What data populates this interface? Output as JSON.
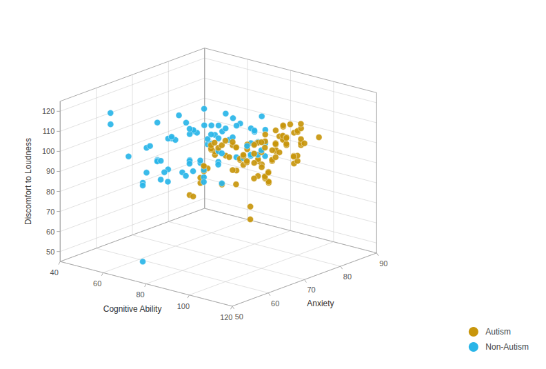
{
  "chart_data": {
    "type": "scatter3d",
    "xlabel": "Cognitive Ability",
    "ylabel": "Anxiety",
    "zlabel": "Discomfort to Loudness",
    "xlim": [
      40,
      120
    ],
    "ylim": [
      50,
      90
    ],
    "zlim": [
      45,
      125
    ],
    "xticks": [
      40,
      60,
      80,
      100,
      120
    ],
    "yticks": [
      50,
      60,
      70,
      80,
      90
    ],
    "zticks": [
      50,
      60,
      70,
      80,
      90,
      100,
      110,
      120
    ],
    "grid": true,
    "legend": "lower right",
    "series": [
      {
        "name": "Autism",
        "color": "#C8960C",
        "values": [
          [
            85,
            72,
            100
          ],
          [
            90,
            68,
            105
          ],
          [
            95,
            65,
            110
          ],
          [
            100,
            70,
            108
          ],
          [
            105,
            75,
            115
          ],
          [
            110,
            68,
            118
          ],
          [
            115,
            72,
            120
          ],
          [
            120,
            65,
            119
          ],
          [
            80,
            80,
            95
          ],
          [
            85,
            78,
            90
          ],
          [
            90,
            75,
            85
          ],
          [
            95,
            82,
            88
          ],
          [
            100,
            80,
            92
          ],
          [
            105,
            77,
            98
          ],
          [
            110,
            73,
            102
          ],
          [
            115,
            70,
            105
          ],
          [
            75,
            85,
            80
          ],
          [
            80,
            82,
            82
          ],
          [
            85,
            80,
            79
          ],
          [
            90,
            78,
            80
          ],
          [
            95,
            75,
            83
          ],
          [
            100,
            72,
            87
          ],
          [
            105,
            68,
            93
          ],
          [
            110,
            65,
            97
          ],
          [
            70,
            75,
            90
          ],
          [
            75,
            72,
            95
          ],
          [
            80,
            70,
            98
          ],
          [
            85,
            67,
            103
          ],
          [
            90,
            65,
            107
          ],
          [
            95,
            63,
            112
          ],
          [
            100,
            68,
            108
          ],
          [
            105,
            72,
            111
          ],
          [
            110,
            75,
            106
          ],
          [
            115,
            77,
            110
          ],
          [
            120,
            70,
            113
          ],
          [
            80,
            68,
            100
          ],
          [
            85,
            65,
            104
          ],
          [
            90,
            62,
            109
          ],
          [
            95,
            60,
            113
          ],
          [
            100,
            63,
            110
          ],
          [
            105,
            65,
            107
          ],
          [
            110,
            68,
            111
          ],
          [
            115,
            65,
            115
          ],
          [
            120,
            62,
            118
          ],
          [
            75,
            70,
            88
          ],
          [
            80,
            73,
            93
          ],
          [
            85,
            75,
            97
          ],
          [
            90,
            77,
            101
          ],
          [
            95,
            72,
            105
          ],
          [
            100,
            70,
            103
          ],
          [
            105,
            68,
            108
          ],
          [
            110,
            70,
            112
          ],
          [
            115,
            68,
            116
          ],
          [
            100,
            65,
            100
          ],
          [
            105,
            63,
            104
          ],
          [
            110,
            60,
            108
          ],
          [
            85,
            73,
            93
          ],
          [
            90,
            70,
            97
          ],
          [
            95,
            68,
            101
          ],
          [
            100,
            65,
            105
          ],
          [
            80,
            75,
            85
          ],
          [
            85,
            78,
            89
          ],
          [
            90,
            80,
            94
          ],
          [
            95,
            77,
            98
          ],
          [
            100,
            73,
            102
          ],
          [
            105,
            70,
            100
          ],
          [
            110,
            67,
            104
          ],
          [
            115,
            65,
            108
          ],
          [
            75,
            68,
            82
          ],
          [
            80,
            65,
            88
          ],
          [
            85,
            63,
            94
          ],
          [
            90,
            60,
            100
          ],
          [
            95,
            65,
            96
          ],
          [
            100,
            68,
            99
          ],
          [
            105,
            72,
            103
          ],
          [
            110,
            75,
            107
          ],
          [
            70,
            72,
            86
          ],
          [
            75,
            75,
            91
          ],
          [
            80,
            78,
            96
          ],
          [
            85,
            80,
            101
          ],
          [
            90,
            82,
            105
          ],
          [
            95,
            79,
            109
          ],
          [
            100,
            76,
            106
          ],
          [
            105,
            73,
            110
          ],
          [
            110,
            70,
            114
          ],
          [
            115,
            68,
            112
          ],
          [
            120,
            65,
            116
          ],
          [
            105,
            60,
            95
          ],
          [
            110,
            62,
            98
          ],
          [
            115,
            63,
            102
          ],
          [
            120,
            60,
            105
          ],
          [
            90,
            85,
            100
          ],
          [
            95,
            83,
            103
          ],
          [
            100,
            80,
            107
          ],
          [
            105,
            78,
            111
          ],
          [
            110,
            75,
            109
          ],
          [
            75,
            65,
            78
          ],
          [
            80,
            63,
            80
          ],
          [
            85,
            68,
            84
          ],
          [
            120,
            55,
            85
          ],
          [
            115,
            58,
            88
          ]
        ]
      },
      {
        "name": "Non-Autism",
        "color": "#29B5E8",
        "values": [
          [
            55,
            55,
            120
          ],
          [
            50,
            58,
            111
          ],
          [
            55,
            60,
            95
          ],
          [
            60,
            65,
            110
          ],
          [
            65,
            68,
            113
          ],
          [
            65,
            70,
            108
          ],
          [
            70,
            72,
            115
          ],
          [
            70,
            68,
            105
          ],
          [
            75,
            75,
            112
          ],
          [
            75,
            70,
            100
          ],
          [
            80,
            72,
            108
          ],
          [
            80,
            68,
            103
          ],
          [
            85,
            65,
            111
          ],
          [
            85,
            70,
            105
          ],
          [
            90,
            68,
            109
          ],
          [
            90,
            72,
            102
          ],
          [
            65,
            60,
            103
          ],
          [
            70,
            63,
            107
          ],
          [
            75,
            65,
            111
          ],
          [
            80,
            67,
            106
          ],
          [
            85,
            62,
            100
          ],
          [
            90,
            65,
            103
          ],
          [
            95,
            68,
            100
          ],
          [
            100,
            70,
            104
          ],
          [
            60,
            68,
            100
          ],
          [
            65,
            72,
            103
          ],
          [
            70,
            75,
            100
          ],
          [
            75,
            78,
            104
          ],
          [
            80,
            80,
            101
          ],
          [
            85,
            77,
            105
          ],
          [
            90,
            75,
            102
          ],
          [
            95,
            72,
            99
          ],
          [
            55,
            65,
            96
          ],
          [
            60,
            70,
            98
          ],
          [
            65,
            73,
            101
          ],
          [
            70,
            76,
            104
          ],
          [
            75,
            73,
            101
          ],
          [
            80,
            70,
            98
          ],
          [
            85,
            67,
            96
          ],
          [
            90,
            64,
            98
          ],
          [
            60,
            62,
            87
          ],
          [
            65,
            65,
            88
          ],
          [
            70,
            68,
            92
          ],
          [
            75,
            65,
            95
          ],
          [
            80,
            62,
            97
          ],
          [
            85,
            60,
            96
          ],
          [
            90,
            60,
            98
          ],
          [
            55,
            72,
            96
          ],
          [
            60,
            75,
            99
          ],
          [
            65,
            77,
            102
          ],
          [
            70,
            80,
            105
          ],
          [
            75,
            82,
            100
          ],
          [
            80,
            79,
            96
          ],
          [
            85,
            76,
            93
          ],
          [
            90,
            73,
            97
          ],
          [
            55,
            68,
            88
          ],
          [
            60,
            65,
            91
          ],
          [
            65,
            62,
            94
          ],
          [
            70,
            60,
            97
          ],
          [
            75,
            58,
            94
          ],
          [
            80,
            56,
            92
          ],
          [
            85,
            58,
            95
          ],
          [
            90,
            60,
            92
          ],
          [
            60,
            78,
            100
          ],
          [
            65,
            80,
            97
          ],
          [
            70,
            82,
            101
          ],
          [
            75,
            85,
            104
          ],
          [
            80,
            83,
            100
          ],
          [
            85,
            80,
            97
          ],
          [
            90,
            77,
            100
          ],
          [
            95,
            74,
            97
          ],
          [
            65,
            58,
            86
          ],
          [
            70,
            55,
            88
          ],
          [
            75,
            57,
            91
          ],
          [
            80,
            60,
            94
          ],
          [
            85,
            63,
            91
          ],
          [
            90,
            65,
            88
          ],
          [
            85,
            72,
            95
          ],
          [
            75,
            68,
            92
          ],
          [
            70,
            55,
            50
          ]
        ]
      }
    ]
  }
}
